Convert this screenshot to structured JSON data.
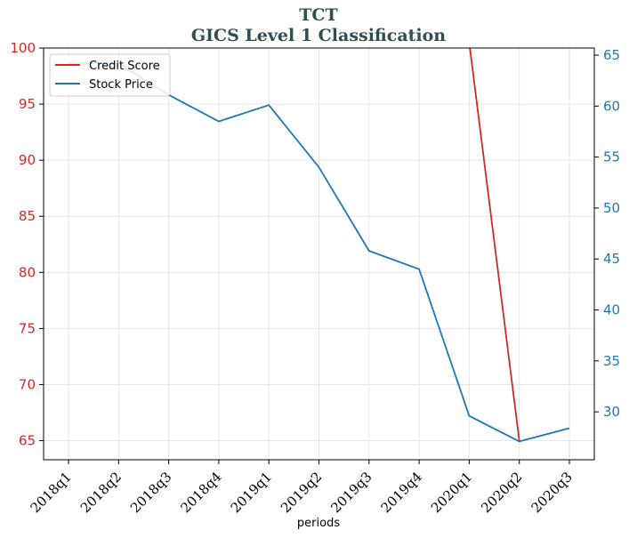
{
  "chart_data": {
    "type": "line",
    "title": "TCT",
    "subtitle": "GICS Level 1 Classification",
    "xlabel": "periods",
    "ylabel_left": "",
    "ylabel_right": "",
    "categories": [
      "2018q1",
      "2018q2",
      "2018q3",
      "2018q4",
      "2019q1",
      "2019q2",
      "2019q3",
      "2019q4",
      "2020q1",
      "2020q2",
      "2020q3"
    ],
    "ylim_left": [
      63.3,
      100
    ],
    "ylim_right": [
      25.3,
      65.7
    ],
    "yticks_left": [
      65,
      70,
      75,
      80,
      85,
      90,
      95,
      100
    ],
    "yticks_right": [
      30,
      35,
      40,
      45,
      50,
      55,
      60,
      65
    ],
    "grid": true,
    "legend_position": "top-left",
    "series": [
      {
        "name": "Credit Score",
        "axis": "left",
        "color": "#d62728",
        "values": [
          null,
          null,
          null,
          null,
          null,
          null,
          null,
          null,
          100.5,
          65.0,
          null
        ]
      },
      {
        "name": "Stock Price",
        "axis": "right",
        "color": "#1f77b4",
        "values": [
          64.2,
          64.2,
          61.1,
          58.5,
          60.1,
          54.0,
          45.8,
          44.0,
          29.6,
          27.1,
          28.4
        ]
      }
    ]
  }
}
